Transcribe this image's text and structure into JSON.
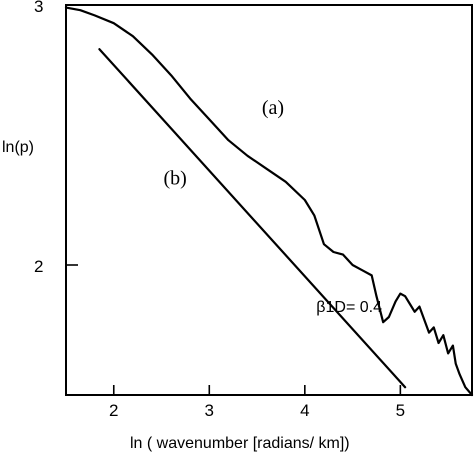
{
  "chart_data": {
    "type": "line",
    "title": "",
    "xlabel": "ln ( wavenumber [radians/ km])",
    "ylabel": "ln(p)",
    "xlim": [
      1.5,
      5.75
    ],
    "ylim": [
      1.5,
      3.0
    ],
    "xticks": [
      2,
      3,
      4,
      5
    ],
    "yticks": [
      2,
      3
    ],
    "grid": false,
    "series": [
      {
        "name": "(a)",
        "x": [
          1.5,
          1.65,
          1.8,
          2.0,
          2.2,
          2.4,
          2.6,
          2.8,
          3.0,
          3.2,
          3.4,
          3.6,
          3.8,
          4.0,
          4.1,
          4.2,
          4.3,
          4.4,
          4.5,
          4.6,
          4.7,
          4.75,
          4.82,
          4.88,
          4.95,
          5.0,
          5.05,
          5.1,
          5.15,
          5.2,
          5.25,
          5.3,
          5.35,
          5.4,
          5.45,
          5.5,
          5.55,
          5.58,
          5.62,
          5.68,
          5.75
        ],
        "y": [
          2.99,
          2.98,
          2.96,
          2.93,
          2.88,
          2.81,
          2.73,
          2.64,
          2.56,
          2.48,
          2.42,
          2.37,
          2.32,
          2.25,
          2.19,
          2.08,
          2.05,
          2.04,
          2.0,
          1.98,
          1.96,
          1.88,
          1.78,
          1.8,
          1.86,
          1.89,
          1.88,
          1.85,
          1.82,
          1.84,
          1.79,
          1.74,
          1.76,
          1.7,
          1.73,
          1.66,
          1.69,
          1.62,
          1.58,
          1.53,
          1.5
        ]
      },
      {
        "name": "(b)",
        "x": [
          1.85,
          5.05
        ],
        "y": [
          2.83,
          1.53
        ]
      }
    ],
    "annotations": [
      {
        "text": "(a)",
        "x": 3.55,
        "y": 2.58
      },
      {
        "text": "(b)",
        "x": 2.52,
        "y": 2.31
      },
      {
        "text": "β1D= 0.4",
        "x": 4.12,
        "y": 1.82
      }
    ]
  }
}
